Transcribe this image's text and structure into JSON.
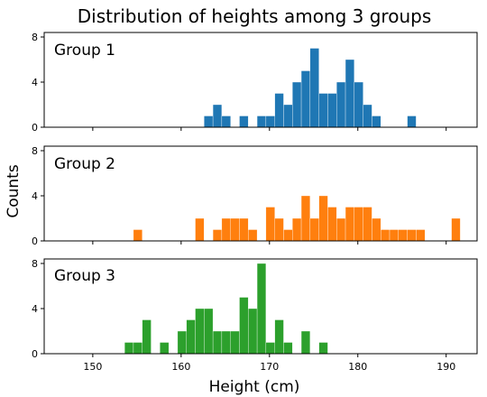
{
  "chart_data": {
    "type": "bar",
    "title": "Distribution of heights among 3 groups",
    "xlabel": "Height (cm)",
    "ylabel": "Counts",
    "xlim": [
      144.5,
      193.5
    ],
    "ylim": [
      0,
      8.4
    ],
    "xticks": [
      150,
      160,
      170,
      180,
      190
    ],
    "yticks": [
      0,
      4,
      8
    ],
    "bin_width": 1,
    "grid": false,
    "sharex": true,
    "panels": [
      {
        "name": "Group 1",
        "color": "#1f77b4",
        "bins": [
          {
            "x": 162.6,
            "count": 1
          },
          {
            "x": 163.6,
            "count": 2
          },
          {
            "x": 164.6,
            "count": 1
          },
          {
            "x": 166.6,
            "count": 1
          },
          {
            "x": 168.6,
            "count": 1
          },
          {
            "x": 169.6,
            "count": 1
          },
          {
            "x": 170.6,
            "count": 3
          },
          {
            "x": 171.6,
            "count": 2
          },
          {
            "x": 172.6,
            "count": 4
          },
          {
            "x": 173.6,
            "count": 5
          },
          {
            "x": 174.6,
            "count": 7
          },
          {
            "x": 175.6,
            "count": 3
          },
          {
            "x": 176.6,
            "count": 3
          },
          {
            "x": 177.6,
            "count": 4
          },
          {
            "x": 178.6,
            "count": 6
          },
          {
            "x": 179.6,
            "count": 4
          },
          {
            "x": 180.6,
            "count": 2
          },
          {
            "x": 181.6,
            "count": 1
          },
          {
            "x": 185.6,
            "count": 1
          }
        ]
      },
      {
        "name": "Group 2",
        "color": "#ff7f0e",
        "bins": [
          {
            "x": 154.6,
            "count": 1
          },
          {
            "x": 161.6,
            "count": 2
          },
          {
            "x": 163.6,
            "count": 1
          },
          {
            "x": 164.6,
            "count": 2
          },
          {
            "x": 165.6,
            "count": 2
          },
          {
            "x": 166.6,
            "count": 2
          },
          {
            "x": 167.6,
            "count": 1
          },
          {
            "x": 169.6,
            "count": 3
          },
          {
            "x": 170.6,
            "count": 2
          },
          {
            "x": 171.6,
            "count": 1
          },
          {
            "x": 172.6,
            "count": 2
          },
          {
            "x": 173.6,
            "count": 4
          },
          {
            "x": 174.6,
            "count": 2
          },
          {
            "x": 175.6,
            "count": 4
          },
          {
            "x": 176.6,
            "count": 3
          },
          {
            "x": 177.6,
            "count": 2
          },
          {
            "x": 178.6,
            "count": 3
          },
          {
            "x": 179.6,
            "count": 3
          },
          {
            "x": 180.6,
            "count": 3
          },
          {
            "x": 181.6,
            "count": 2
          },
          {
            "x": 182.6,
            "count": 1
          },
          {
            "x": 183.6,
            "count": 1
          },
          {
            "x": 184.6,
            "count": 1
          },
          {
            "x": 185.6,
            "count": 1
          },
          {
            "x": 186.6,
            "count": 1
          },
          {
            "x": 190.6,
            "count": 2
          }
        ]
      },
      {
        "name": "Group 3",
        "color": "#2ca02c",
        "bins": [
          {
            "x": 153.6,
            "count": 1
          },
          {
            "x": 154.6,
            "count": 1
          },
          {
            "x": 155.6,
            "count": 3
          },
          {
            "x": 157.6,
            "count": 1
          },
          {
            "x": 159.6,
            "count": 2
          },
          {
            "x": 160.6,
            "count": 3
          },
          {
            "x": 161.6,
            "count": 4
          },
          {
            "x": 162.6,
            "count": 4
          },
          {
            "x": 163.6,
            "count": 2
          },
          {
            "x": 164.6,
            "count": 2
          },
          {
            "x": 165.6,
            "count": 2
          },
          {
            "x": 166.6,
            "count": 5
          },
          {
            "x": 167.6,
            "count": 4
          },
          {
            "x": 168.6,
            "count": 8
          },
          {
            "x": 169.6,
            "count": 1
          },
          {
            "x": 170.6,
            "count": 3
          },
          {
            "x": 171.6,
            "count": 1
          },
          {
            "x": 173.6,
            "count": 2
          },
          {
            "x": 175.6,
            "count": 1
          }
        ]
      }
    ]
  }
}
